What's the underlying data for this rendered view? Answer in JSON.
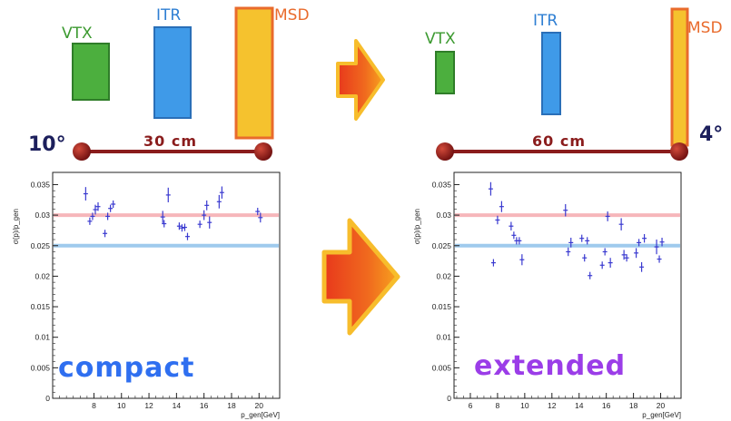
{
  "colors": {
    "vtx": "#4caf3e",
    "itr": "#3f9ae8",
    "msd": "#f5c22e",
    "msd_border": "#e96b2c",
    "rail": "#8a1c1c",
    "angle_text": "#1c1f5c",
    "points": "#3a3ad0",
    "band_30": "#f4a9ae",
    "band_25": "#8ec1ea",
    "compact_text": "#2f6ff0",
    "extended_text": "#9b3de8"
  },
  "setups": [
    {
      "angle": "10°",
      "distance": "30 cm",
      "labels": {
        "vtx": "VTX",
        "itr": "ITR",
        "msd": "MSD"
      }
    },
    {
      "angle": "4°",
      "distance": "60 cm",
      "labels": {
        "vtx": "VTX",
        "itr": "ITR",
        "msd": "MSD"
      }
    }
  ],
  "arrows": [
    "arrow-right-icon",
    "arrow-right-icon"
  ],
  "chart_data": [
    {
      "type": "scatter",
      "annotation": "compact",
      "ylabel": "σ(p)/p_gen",
      "xlabel": "p_gen[GeV]",
      "xlim": [
        5,
        21.5
      ],
      "ylim": [
        0,
        0.037
      ],
      "xticks": [
        8,
        10,
        12,
        14,
        16,
        18,
        20
      ],
      "yticks": [
        0,
        0.005,
        0.01,
        0.015,
        0.02,
        0.025,
        0.03,
        0.035
      ],
      "ytick_labels": [
        "0",
        "0.005",
        "0.01",
        "0.015",
        "0.02",
        "0.025",
        "0.03",
        "0.035"
      ],
      "reference_lines": [
        0.03,
        0.025
      ],
      "points": [
        {
          "x": 7.4,
          "y": 0.0335,
          "err": 0.0011
        },
        {
          "x": 7.7,
          "y": 0.029,
          "err": 0.0006
        },
        {
          "x": 7.9,
          "y": 0.0298,
          "err": 0.0006
        },
        {
          "x": 8.1,
          "y": 0.0309,
          "err": 0.0008
        },
        {
          "x": 8.3,
          "y": 0.0314,
          "err": 0.0007
        },
        {
          "x": 8.8,
          "y": 0.027,
          "err": 0.0006
        },
        {
          "x": 9.0,
          "y": 0.0298,
          "err": 0.0006
        },
        {
          "x": 9.2,
          "y": 0.0311,
          "err": 0.0006
        },
        {
          "x": 9.4,
          "y": 0.0318,
          "err": 0.0006
        },
        {
          "x": 13.0,
          "y": 0.0297,
          "err": 0.001
        },
        {
          "x": 13.1,
          "y": 0.0286,
          "err": 0.0006
        },
        {
          "x": 13.4,
          "y": 0.0333,
          "err": 0.0012
        },
        {
          "x": 14.2,
          "y": 0.0282,
          "err": 0.0006
        },
        {
          "x": 14.4,
          "y": 0.0279,
          "err": 0.0006
        },
        {
          "x": 14.6,
          "y": 0.028,
          "err": 0.0006
        },
        {
          "x": 14.8,
          "y": 0.0265,
          "err": 0.0006
        },
        {
          "x": 15.7,
          "y": 0.0285,
          "err": 0.0006
        },
        {
          "x": 16.0,
          "y": 0.03,
          "err": 0.0008
        },
        {
          "x": 16.2,
          "y": 0.0316,
          "err": 0.0008
        },
        {
          "x": 16.4,
          "y": 0.0288,
          "err": 0.001
        },
        {
          "x": 17.1,
          "y": 0.0322,
          "err": 0.0011
        },
        {
          "x": 17.3,
          "y": 0.0337,
          "err": 0.001
        },
        {
          "x": 19.9,
          "y": 0.0306,
          "err": 0.0006
        },
        {
          "x": 20.1,
          "y": 0.0296,
          "err": 0.0008
        }
      ]
    },
    {
      "type": "scatter",
      "annotation": "extended",
      "ylabel": "σ(p)/p_gen",
      "xlabel": "p_gen[GeV]",
      "xlim": [
        4.8,
        21.5
      ],
      "ylim": [
        0,
        0.037
      ],
      "xticks": [
        6,
        8,
        10,
        12,
        14,
        16,
        18,
        20
      ],
      "yticks": [
        0,
        0.005,
        0.01,
        0.015,
        0.02,
        0.025,
        0.03,
        0.035
      ],
      "ytick_labels": [
        "0",
        "0.005",
        "0.01",
        "0.015",
        "0.02",
        "0.025",
        "0.03",
        "0.035"
      ],
      "reference_lines": [
        0.03,
        0.025
      ],
      "points": [
        {
          "x": 7.5,
          "y": 0.0343,
          "err": 0.0011
        },
        {
          "x": 7.7,
          "y": 0.0222,
          "err": 0.0006
        },
        {
          "x": 8.0,
          "y": 0.0292,
          "err": 0.0007
        },
        {
          "x": 8.3,
          "y": 0.0314,
          "err": 0.0009
        },
        {
          "x": 9.0,
          "y": 0.0282,
          "err": 0.0007
        },
        {
          "x": 9.2,
          "y": 0.0267,
          "err": 0.0006
        },
        {
          "x": 9.4,
          "y": 0.0258,
          "err": 0.0006
        },
        {
          "x": 9.6,
          "y": 0.0258,
          "err": 0.0006
        },
        {
          "x": 9.8,
          "y": 0.0227,
          "err": 0.0009
        },
        {
          "x": 13.0,
          "y": 0.0308,
          "err": 0.001
        },
        {
          "x": 13.2,
          "y": 0.024,
          "err": 0.0007
        },
        {
          "x": 13.4,
          "y": 0.0255,
          "err": 0.0008
        },
        {
          "x": 14.2,
          "y": 0.0262,
          "err": 0.0006
        },
        {
          "x": 14.4,
          "y": 0.023,
          "err": 0.0006
        },
        {
          "x": 14.6,
          "y": 0.0258,
          "err": 0.0006
        },
        {
          "x": 14.8,
          "y": 0.0201,
          "err": 0.0006
        },
        {
          "x": 15.7,
          "y": 0.0218,
          "err": 0.0006
        },
        {
          "x": 15.9,
          "y": 0.024,
          "err": 0.0006
        },
        {
          "x": 16.1,
          "y": 0.0298,
          "err": 0.0008
        },
        {
          "x": 16.3,
          "y": 0.0222,
          "err": 0.0008
        },
        {
          "x": 17.1,
          "y": 0.0285,
          "err": 0.001
        },
        {
          "x": 17.3,
          "y": 0.0235,
          "err": 0.0008
        },
        {
          "x": 17.5,
          "y": 0.023,
          "err": 0.0006
        },
        {
          "x": 18.2,
          "y": 0.0238,
          "err": 0.0008
        },
        {
          "x": 18.4,
          "y": 0.0255,
          "err": 0.0006
        },
        {
          "x": 18.6,
          "y": 0.0215,
          "err": 0.0008
        },
        {
          "x": 18.8,
          "y": 0.0262,
          "err": 0.0007
        },
        {
          "x": 19.7,
          "y": 0.0248,
          "err": 0.0012
        },
        {
          "x": 19.9,
          "y": 0.0228,
          "err": 0.0006
        },
        {
          "x": 20.1,
          "y": 0.0256,
          "err": 0.0007
        }
      ]
    }
  ]
}
